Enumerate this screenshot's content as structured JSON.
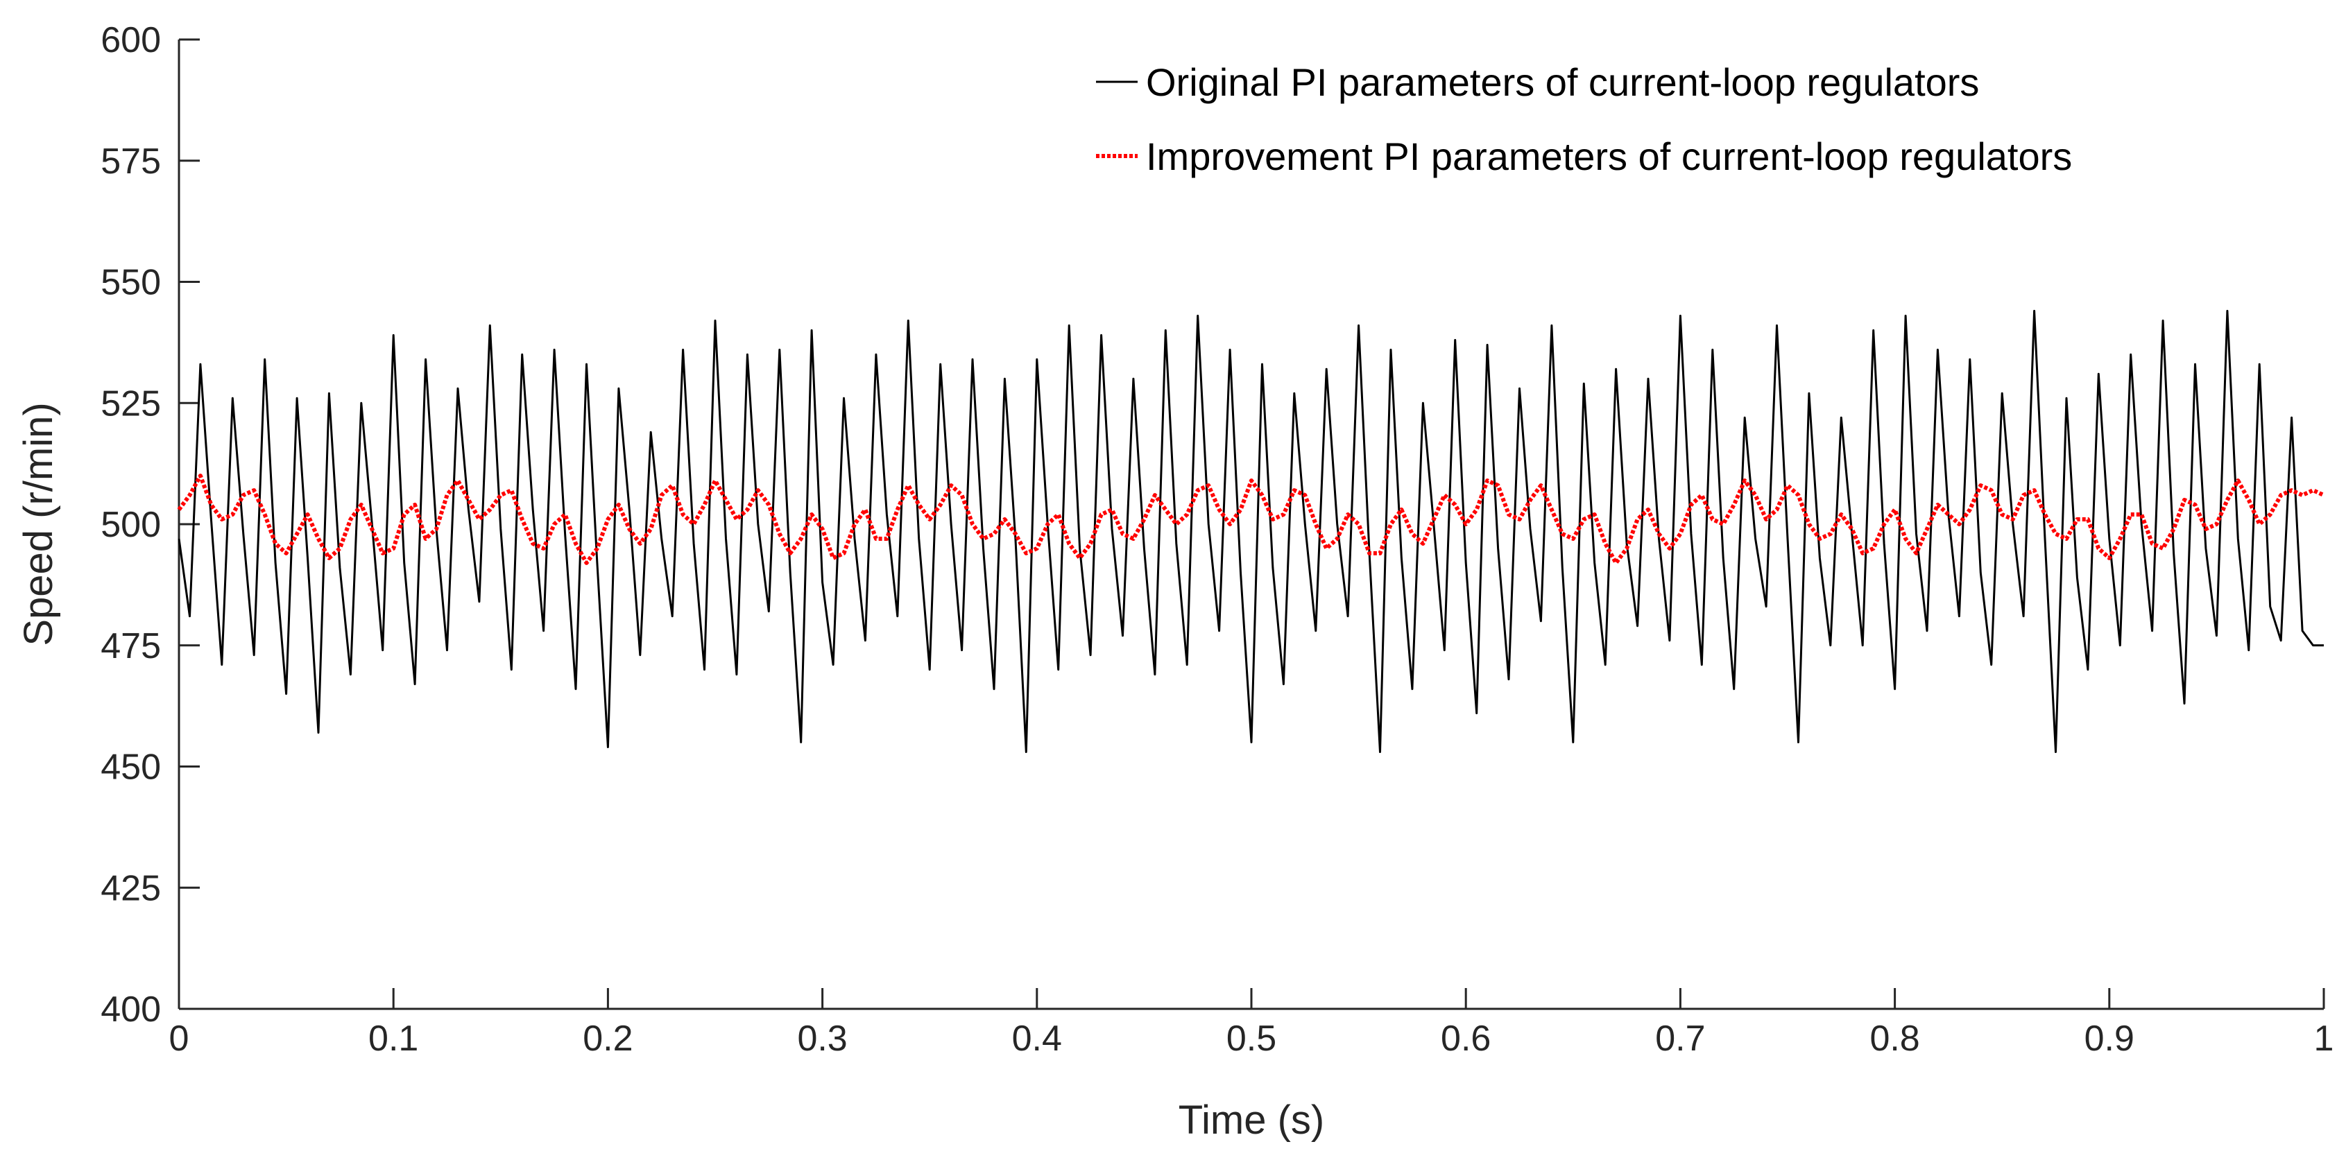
{
  "chart_data": {
    "type": "line",
    "title": "",
    "xlabel": "Time (s)",
    "ylabel": "Speed (r/min)",
    "xlim": [
      0,
      1
    ],
    "ylim": [
      400,
      600
    ],
    "xticks": [
      0,
      0.1,
      0.2,
      0.3,
      0.4,
      0.5,
      0.6,
      0.7,
      0.8,
      0.9,
      1
    ],
    "xtick_labels": [
      "0",
      "0.1",
      "0.2",
      "0.3",
      "0.4",
      "0.5",
      "0.6",
      "0.7",
      "0.8",
      "0.9",
      "1"
    ],
    "yticks": [
      400,
      425,
      450,
      475,
      500,
      525,
      550,
      575,
      600
    ],
    "ytick_labels": [
      "400",
      "425",
      "450",
      "475",
      "500",
      "525",
      "550",
      "575",
      "600"
    ],
    "grid": false,
    "legend_position": "top-right",
    "series": [
      {
        "name": "Original PI parameters of current-loop regulators",
        "color": "#000000",
        "style": "solid",
        "x": [
          0,
          0.005,
          0.01,
          0.015,
          0.02,
          0.025,
          0.03,
          0.035,
          0.04,
          0.045,
          0.05,
          0.055,
          0.06,
          0.065,
          0.07,
          0.075,
          0.08,
          0.085,
          0.09,
          0.095,
          0.1,
          0.105,
          0.11,
          0.115,
          0.12,
          0.125,
          0.13,
          0.135,
          0.14,
          0.145,
          0.15,
          0.155,
          0.16,
          0.165,
          0.17,
          0.175,
          0.18,
          0.185,
          0.19,
          0.195,
          0.2,
          0.205,
          0.21,
          0.215,
          0.22,
          0.225,
          0.23,
          0.235,
          0.24,
          0.245,
          0.25,
          0.255,
          0.26,
          0.265,
          0.27,
          0.275,
          0.28,
          0.285,
          0.29,
          0.295,
          0.3,
          0.305,
          0.31,
          0.315,
          0.32,
          0.325,
          0.33,
          0.335,
          0.34,
          0.345,
          0.35,
          0.355,
          0.36,
          0.365,
          0.37,
          0.375,
          0.38,
          0.385,
          0.39,
          0.395,
          0.4,
          0.405,
          0.41,
          0.415,
          0.42,
          0.425,
          0.43,
          0.435,
          0.44,
          0.445,
          0.45,
          0.455,
          0.46,
          0.465,
          0.47,
          0.475,
          0.48,
          0.485,
          0.49,
          0.495,
          0.5,
          0.505,
          0.51,
          0.515,
          0.52,
          0.525,
          0.53,
          0.535,
          0.54,
          0.545,
          0.55,
          0.555,
          0.56,
          0.565,
          0.57,
          0.575,
          0.58,
          0.585,
          0.59,
          0.595,
          0.6,
          0.605,
          0.61,
          0.615,
          0.62,
          0.625,
          0.63,
          0.635,
          0.64,
          0.645,
          0.65,
          0.655,
          0.66,
          0.665,
          0.67,
          0.675,
          0.68,
          0.685,
          0.69,
          0.695,
          0.7,
          0.705,
          0.71,
          0.715,
          0.72,
          0.725,
          0.73,
          0.735,
          0.74,
          0.745,
          0.75,
          0.755,
          0.76,
          0.765,
          0.77,
          0.775,
          0.78,
          0.785,
          0.79,
          0.795,
          0.8,
          0.805,
          0.81,
          0.815,
          0.82,
          0.825,
          0.83,
          0.835,
          0.84,
          0.845,
          0.85,
          0.855,
          0.86,
          0.865,
          0.87,
          0.875,
          0.88,
          0.885,
          0.89,
          0.895,
          0.9,
          0.905,
          0.91,
          0.915,
          0.92,
          0.925,
          0.93,
          0.935,
          0.94,
          0.945,
          0.95,
          0.955,
          0.96,
          0.965,
          0.97,
          0.975,
          0.98,
          0.985,
          0.99,
          0.995,
          1
        ],
        "y": [
          497,
          481,
          533,
          501,
          471,
          526,
          498,
          473,
          534,
          492,
          465,
          526,
          493,
          457,
          527,
          491,
          469,
          525,
          500,
          474,
          539,
          492,
          467,
          534,
          499,
          474,
          528,
          503,
          484,
          541,
          499,
          470,
          535,
          503,
          478,
          536,
          498,
          466,
          533,
          492,
          454,
          528,
          503,
          473,
          519,
          497,
          481,
          536,
          496,
          470,
          542,
          497,
          469,
          535,
          500,
          482,
          536,
          490,
          455,
          540,
          488,
          471,
          526,
          497,
          476,
          535,
          502,
          481,
          542,
          497,
          470,
          533,
          500,
          474,
          534,
          495,
          466,
          530,
          497,
          453,
          534,
          500,
          470,
          541,
          495,
          473,
          539,
          499,
          477,
          530,
          495,
          469,
          540,
          496,
          471,
          543,
          500,
          478,
          536,
          490,
          455,
          533,
          491,
          467,
          527,
          500,
          478,
          532,
          500,
          481,
          541,
          494,
          453,
          536,
          493,
          466,
          525,
          500,
          474,
          538,
          492,
          461,
          537,
          495,
          468,
          528,
          499,
          480,
          541,
          491,
          455,
          529,
          492,
          471,
          532,
          496,
          479,
          530,
          497,
          476,
          543,
          498,
          471,
          536,
          493,
          466,
          522,
          497,
          483,
          541,
          497,
          455,
          527,
          493,
          475,
          522,
          498,
          475,
          540,
          496,
          466,
          543,
          498,
          478,
          536,
          502,
          481,
          534,
          490,
          471,
          527,
          500,
          481,
          544,
          497,
          453,
          526,
          489,
          470,
          531,
          497,
          475,
          535,
          500,
          478,
          542,
          494,
          463,
          533,
          495,
          477,
          544,
          497,
          474,
          533,
          483,
          476,
          522,
          478,
          475,
          475
        ]
      },
      {
        "name": "Improvement PI parameters of current-loop regulators",
        "color": "#ff0000",
        "style": "dotted",
        "x": [
          0,
          0.005,
          0.01,
          0.015,
          0.02,
          0.025,
          0.03,
          0.035,
          0.04,
          0.045,
          0.05,
          0.055,
          0.06,
          0.065,
          0.07,
          0.075,
          0.08,
          0.085,
          0.09,
          0.095,
          0.1,
          0.105,
          0.11,
          0.115,
          0.12,
          0.125,
          0.13,
          0.135,
          0.14,
          0.145,
          0.15,
          0.155,
          0.16,
          0.165,
          0.17,
          0.175,
          0.18,
          0.185,
          0.19,
          0.195,
          0.2,
          0.205,
          0.21,
          0.215,
          0.22,
          0.225,
          0.23,
          0.235,
          0.24,
          0.245,
          0.25,
          0.255,
          0.26,
          0.265,
          0.27,
          0.275,
          0.28,
          0.285,
          0.29,
          0.295,
          0.3,
          0.305,
          0.31,
          0.315,
          0.32,
          0.325,
          0.33,
          0.335,
          0.34,
          0.345,
          0.35,
          0.355,
          0.36,
          0.365,
          0.37,
          0.375,
          0.38,
          0.385,
          0.39,
          0.395,
          0.4,
          0.405,
          0.41,
          0.415,
          0.42,
          0.425,
          0.43,
          0.435,
          0.44,
          0.445,
          0.45,
          0.455,
          0.46,
          0.465,
          0.47,
          0.475,
          0.48,
          0.485,
          0.49,
          0.495,
          0.5,
          0.505,
          0.51,
          0.515,
          0.52,
          0.525,
          0.53,
          0.535,
          0.54,
          0.545,
          0.55,
          0.555,
          0.56,
          0.565,
          0.57,
          0.575,
          0.58,
          0.585,
          0.59,
          0.595,
          0.6,
          0.605,
          0.61,
          0.615,
          0.62,
          0.625,
          0.63,
          0.635,
          0.64,
          0.645,
          0.65,
          0.655,
          0.66,
          0.665,
          0.67,
          0.675,
          0.68,
          0.685,
          0.69,
          0.695,
          0.7,
          0.705,
          0.71,
          0.715,
          0.72,
          0.725,
          0.73,
          0.735,
          0.74,
          0.745,
          0.75,
          0.755,
          0.76,
          0.765,
          0.77,
          0.775,
          0.78,
          0.785,
          0.79,
          0.795,
          0.8,
          0.805,
          0.81,
          0.815,
          0.82,
          0.825,
          0.83,
          0.835,
          0.84,
          0.845,
          0.85,
          0.855,
          0.86,
          0.865,
          0.87,
          0.875,
          0.88,
          0.885,
          0.89,
          0.895,
          0.9,
          0.905,
          0.91,
          0.915,
          0.92,
          0.925,
          0.93,
          0.935,
          0.94,
          0.945,
          0.95,
          0.955,
          0.96,
          0.965,
          0.97,
          0.975,
          0.98,
          0.985,
          0.99,
          0.995,
          1
        ],
        "y": [
          503,
          506,
          510,
          504,
          501,
          502,
          506,
          507,
          502,
          496,
          494,
          498,
          502,
          497,
          493,
          495,
          501,
          504,
          499,
          494,
          495,
          502,
          504,
          497,
          499,
          506,
          509,
          505,
          501,
          503,
          506,
          507,
          501,
          496,
          495,
          500,
          502,
          496,
          492,
          495,
          501,
          504,
          499,
          496,
          499,
          506,
          508,
          502,
          500,
          504,
          509,
          505,
          501,
          503,
          507,
          504,
          498,
          494,
          497,
          502,
          499,
          493,
          494,
          500,
          503,
          497,
          497,
          503,
          508,
          504,
          501,
          504,
          508,
          506,
          500,
          497,
          498,
          501,
          498,
          494,
          495,
          500,
          502,
          496,
          493,
          496,
          502,
          503,
          498,
          497,
          501,
          506,
          503,
          500,
          502,
          507,
          508,
          503,
          500,
          503,
          509,
          506,
          501,
          502,
          507,
          506,
          500,
          495,
          497,
          502,
          500,
          494,
          494,
          500,
          503,
          498,
          496,
          501,
          506,
          504,
          500,
          503,
          509,
          508,
          502,
          501,
          505,
          508,
          503,
          498,
          497,
          501,
          502,
          496,
          492,
          495,
          501,
          503,
          498,
          495,
          498,
          504,
          506,
          501,
          500,
          504,
          509,
          506,
          501,
          503,
          508,
          506,
          500,
          497,
          498,
          502,
          499,
          494,
          495,
          500,
          503,
          497,
          494,
          499,
          504,
          502,
          500,
          503,
          508,
          507,
          502,
          501,
          506,
          507,
          502,
          498,
          497,
          501,
          501,
          495,
          493,
          497,
          502,
          502,
          496,
          495,
          499,
          505,
          504,
          499,
          500,
          505,
          509,
          505,
          500,
          502,
          506,
          507,
          506,
          507,
          506
        ]
      }
    ]
  }
}
